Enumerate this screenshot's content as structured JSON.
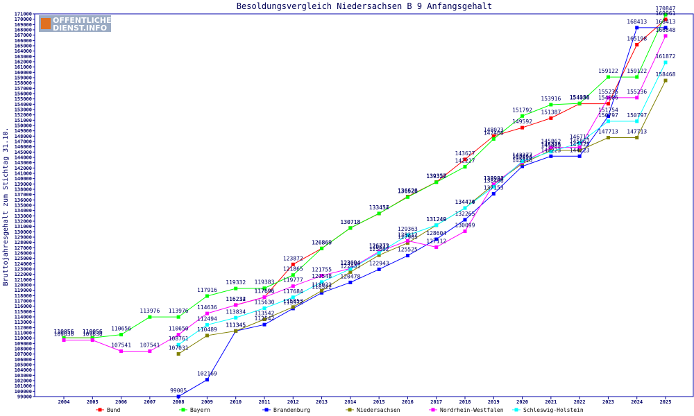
{
  "chart_data": {
    "type": "line",
    "title": "Besoldungsvergleich Niedersachsen B 9 Anfangsgehalt",
    "xlabel": "",
    "ylabel": "Bruttojahresgehalt zum Stichtag 31.10.",
    "ylim": [
      99000,
      171000
    ],
    "ytick_step": 1000,
    "categories": [
      "2004",
      "2005",
      "2006",
      "2007",
      "2008",
      "2009",
      "2010",
      "2011",
      "2012",
      "2013",
      "2014",
      "2015",
      "2016",
      "2017",
      "2018",
      "2019",
      "2020",
      "2021",
      "2022",
      "2023",
      "2024",
      "2025"
    ],
    "legend_position": "bottom",
    "series": [
      {
        "name": "Bund",
        "color": "#ff0000",
        "values": [
          110056,
          110056,
          null,
          null,
          null,
          null,
          116234,
          117696,
          123872,
          126869,
          130718,
          133434,
          136626,
          139357,
          143627,
          148023,
          149592,
          151387,
          154086,
          154086,
          165198,
          169961
        ]
      },
      {
        "name": "Bayern",
        "color": "#00ff00",
        "values": [
          110056,
          110056,
          110656,
          113976,
          113976,
          117916,
          119332,
          119383,
          121865,
          126869,
          130718,
          133457,
          136528,
          139328,
          142227,
          147466,
          151792,
          153916,
          154158,
          159122,
          159122,
          170847
        ]
      },
      {
        "name": "Brandenburg",
        "color": "#0000ff",
        "values": [
          null,
          null,
          null,
          null,
          99005,
          102169,
          111345,
          112542,
          115572,
          118522,
          120478,
          122943,
          125525,
          128604,
          132265,
          137153,
          142316,
          144223,
          144223,
          151754,
          168413,
          168413
        ]
      },
      {
        "name": "Niedersachsen",
        "color": "#808000",
        "values": [
          null,
          null,
          null,
          null,
          107031,
          110489,
          111345,
          113542,
          115853,
          118922,
          122431,
          125602,
          127901,
          131240,
          134474,
          138904,
          142826,
          145325,
          145325,
          147713,
          147713,
          158468
        ]
      },
      {
        "name": "Nordrhein-Westfalen",
        "color": "#ff00ff",
        "values": [
          109630,
          109630,
          107541,
          107541,
          110650,
          114636,
          116212,
          117696,
          119777,
          121755,
          123094,
          126273,
          128312,
          127112,
          130099,
          138931,
          143064,
          145862,
          145862,
          155236,
          155236,
          166848
        ]
      },
      {
        "name": "Schleswig-Holstein",
        "color": "#00ffff",
        "values": [
          null,
          null,
          null,
          null,
          108761,
          112494,
          113834,
          115630,
          117684,
          120548,
          123004,
          126037,
          129363,
          131249,
          134470,
          138466,
          143277,
          145085,
          146712,
          150797,
          150797,
          161872
        ]
      }
    ]
  },
  "logo": {
    "line1": "OFFENTLICHER",
    "line2": "DIENST.INFO"
  }
}
